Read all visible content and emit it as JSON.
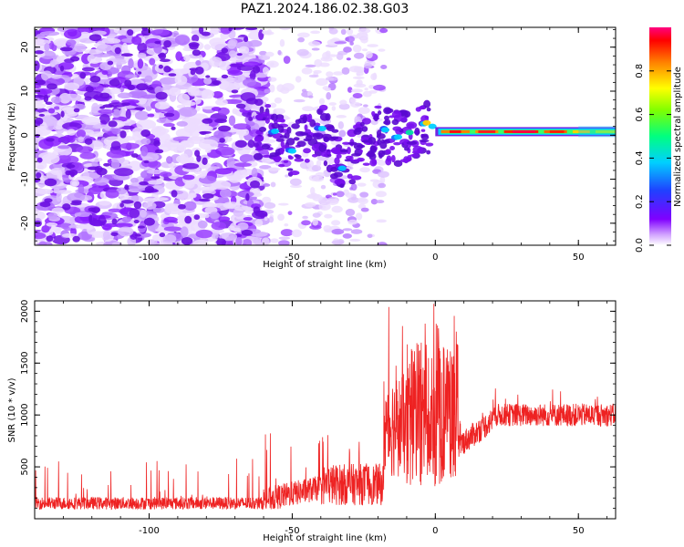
{
  "title": "PAZ1.2024.186.02.38.G03",
  "chart_data": [
    {
      "type": "heatmap",
      "xlabel": "Height of straight line (km)",
      "ylabel": "Frequency (Hz)",
      "xlim": [
        -140,
        63
      ],
      "ylim": [
        -25,
        24.5
      ],
      "xticks": [
        -100,
        -50,
        0,
        50
      ],
      "yticks": [
        -20,
        -10,
        0,
        10,
        20
      ],
      "colorbar": {
        "label": "Normalized spectral amplitude",
        "range": [
          0,
          1
        ],
        "ticks": [
          0.0,
          0.2,
          0.4,
          0.6,
          0.8
        ],
        "colormap": "rainbow-white"
      },
      "features": {
        "noise_region_x": [
          -140,
          -18
        ],
        "dense_noise_x": [
          -140,
          -60
        ],
        "sparse_noise_x": [
          -60,
          -18
        ],
        "tone": {
          "description_points": [
            {
              "x": -58,
              "f": 1.5
            },
            {
              "x": -50,
              "f": -3.5
            },
            {
              "x": -40,
              "f": 1.5
            },
            {
              "x": -33,
              "f": -7.5
            },
            {
              "x": -20,
              "f": 0.5
            },
            {
              "x": -13,
              "f": -0.5
            },
            {
              "x": -8,
              "f": 0.5
            },
            {
              "x": -4,
              "f": 2.5
            },
            {
              "x": 2,
              "f": 0.8
            },
            {
              "x": 63,
              "f": 0.8
            }
          ]
        }
      }
    },
    {
      "type": "line",
      "xlabel": "Height of straight line (km)",
      "ylabel": "SNR (10 * v/v)",
      "xlim": [
        -140,
        63
      ],
      "ylim": [
        0,
        2100
      ],
      "xticks": [
        -100,
        -50,
        0,
        50
      ],
      "yticks": [
        500,
        1000,
        1500,
        2000
      ],
      "color": "#ee2222",
      "segments": [
        {
          "x": [
            -140,
            -60
          ],
          "base": 150,
          "amplitude": 60,
          "spike_max": 580
        },
        {
          "x": [
            -60,
            -40
          ],
          "base": 230,
          "amplitude": 120,
          "spike_max": 830
        },
        {
          "x": [
            -40,
            -18
          ],
          "base": 330,
          "amplitude": 200,
          "spike_max": 840
        },
        {
          "x": [
            -18,
            -10
          ],
          "base": 900,
          "amplitude": 500,
          "spike_max": 2050
        },
        {
          "x": [
            -10,
            8
          ],
          "base": 1000,
          "amplitude": 700,
          "spike_max": 2100
        },
        {
          "x": [
            8,
            20
          ],
          "base": 850,
          "amplitude": 120,
          "spike_max": 1050
        },
        {
          "x": [
            20,
            63
          ],
          "base": 1000,
          "amplitude": 110,
          "spike_max": 1260
        }
      ]
    }
  ]
}
